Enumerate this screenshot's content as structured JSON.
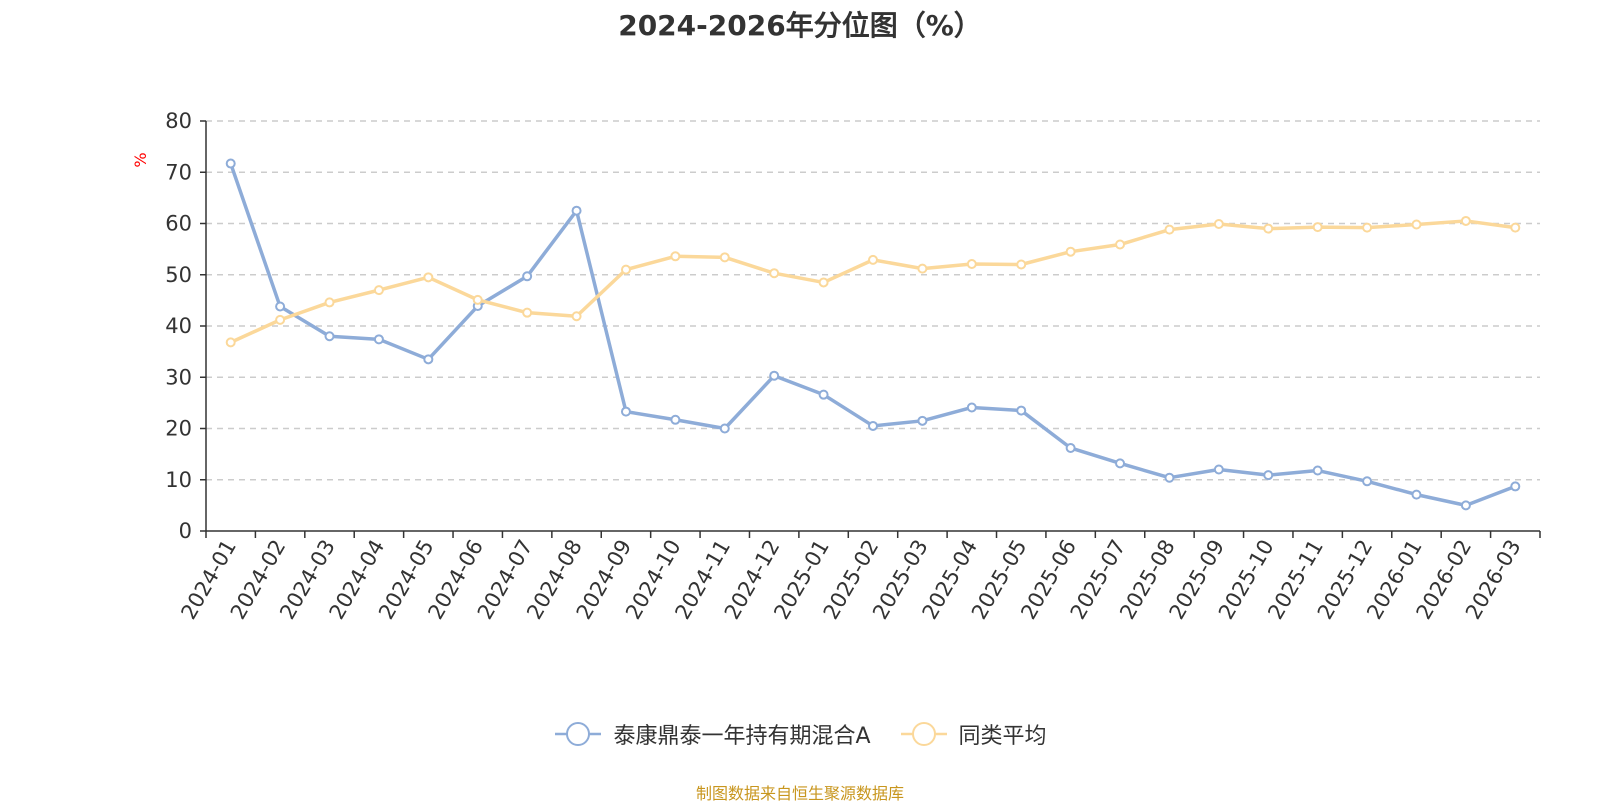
{
  "chart_data": {
    "type": "line",
    "title": "2024-2026年分位图（%）",
    "ylabel": "%",
    "xlabel": "",
    "ylim": [
      0,
      80
    ],
    "yticks": [
      0,
      10,
      20,
      30,
      40,
      50,
      60,
      70,
      80
    ],
    "grid": true,
    "legend_position": "bottom",
    "categories": [
      "2024-01",
      "2024-02",
      "2024-03",
      "2024-04",
      "2024-05",
      "2024-06",
      "2024-07",
      "2024-08",
      "2024-09",
      "2024-10",
      "2024-11",
      "2024-12",
      "2025-01",
      "2025-02",
      "2025-03",
      "2025-04",
      "2025-05",
      "2025-06",
      "2025-07",
      "2025-08",
      "2025-09",
      "2025-10",
      "2025-11",
      "2025-12",
      "2026-01",
      "2026-02",
      "2026-03"
    ],
    "series": [
      {
        "name": "泰康鼎泰一年持有期混合A",
        "color": "#8eacd8",
        "values": [
          71.7,
          43.8,
          38.0,
          37.4,
          33.5,
          43.9,
          49.7,
          62.5,
          23.3,
          21.7,
          20.0,
          30.3,
          26.6,
          20.5,
          21.5,
          24.1,
          23.5,
          16.2,
          13.2,
          10.4,
          12.0,
          10.9,
          11.8,
          9.7,
          7.1,
          5.0,
          8.7
        ]
      },
      {
        "name": "同类平均",
        "color": "#fbd89a",
        "values": [
          36.8,
          41.2,
          44.6,
          47.0,
          49.5,
          45.1,
          42.6,
          41.9,
          51.0,
          53.6,
          53.4,
          50.3,
          48.5,
          52.9,
          51.2,
          52.1,
          52.0,
          54.5,
          55.9,
          58.8,
          59.9,
          59.0,
          59.3,
          59.2,
          59.8,
          60.5,
          59.2
        ]
      }
    ]
  },
  "footer": "制图数据来自恒生聚源数据库"
}
